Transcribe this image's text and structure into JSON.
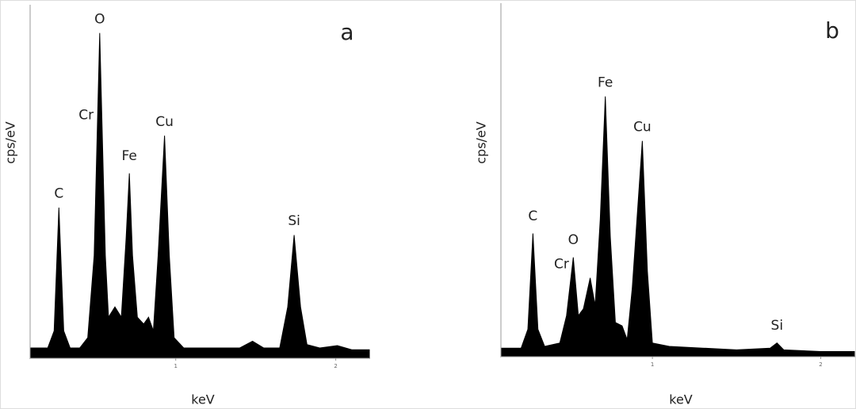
{
  "chart_data": [
    {
      "type": "area",
      "title": "a",
      "xlabel": "keV",
      "ylabel": "cps/eV",
      "color": "#000000",
      "xlim": [
        0.09,
        2.21
      ],
      "xticks": [
        1,
        2
      ],
      "ylim": [
        0,
        100
      ],
      "x": [
        0.09,
        0.2,
        0.24,
        0.27,
        0.3,
        0.34,
        0.4,
        0.45,
        0.49,
        0.525,
        0.56,
        0.58,
        0.62,
        0.66,
        0.69,
        0.71,
        0.73,
        0.76,
        0.8,
        0.83,
        0.86,
        0.89,
        0.93,
        0.96,
        0.99,
        1.05,
        1.2,
        1.4,
        1.48,
        1.55,
        1.65,
        1.7,
        1.74,
        1.78,
        1.82,
        1.9,
        2.01,
        2.1,
        2.21
      ],
      "values": [
        3,
        3,
        8,
        44,
        8,
        3,
        3,
        6,
        30,
        95,
        30,
        12,
        15,
        12,
        35,
        54,
        30,
        12,
        10,
        12,
        8,
        30,
        65,
        30,
        6,
        3,
        3,
        3,
        5,
        3,
        3,
        15,
        36,
        15,
        4,
        3,
        3.7,
        2.5,
        2.5
      ],
      "annotations": [
        {
          "text": "C",
          "x": 0.27,
          "y": 48
        },
        {
          "text": "O",
          "x": 0.525,
          "y": 99
        },
        {
          "text": "Cr",
          "x": 0.44,
          "y": 71
        },
        {
          "text": "Fe",
          "x": 0.71,
          "y": 59
        },
        {
          "text": "Cu",
          "x": 0.93,
          "y": 69
        },
        {
          "text": "Si",
          "x": 1.74,
          "y": 40
        }
      ]
    },
    {
      "type": "area",
      "title": "b",
      "xlabel": "keV",
      "ylabel": "cps/eV",
      "color": "#000000",
      "xlim": [
        0.1,
        2.2
      ],
      "xticks": [
        1,
        2
      ],
      "ylim": [
        0,
        100
      ],
      "x": [
        0.1,
        0.22,
        0.26,
        0.29,
        0.32,
        0.36,
        0.45,
        0.49,
        0.53,
        0.56,
        0.59,
        0.63,
        0.66,
        0.69,
        0.72,
        0.75,
        0.78,
        0.82,
        0.85,
        0.88,
        0.94,
        0.97,
        1.0,
        1.1,
        1.3,
        1.5,
        1.7,
        1.74,
        1.78,
        2.0,
        2.2
      ],
      "values": [
        2.5,
        2.5,
        8,
        36,
        8,
        3,
        4,
        12,
        29,
        12,
        14,
        23,
        15,
        40,
        76,
        35,
        10,
        9,
        5,
        20,
        63,
        25,
        4,
        3,
        2.5,
        2,
        2.5,
        4,
        2,
        1.5,
        1.5
      ],
      "annotations": [
        {
          "text": "C",
          "x": 0.29,
          "y": 41
        },
        {
          "text": "O",
          "x": 0.53,
          "y": 34
        },
        {
          "text": "Cr",
          "x": 0.46,
          "y": 27
        },
        {
          "text": "Fe",
          "x": 0.72,
          "y": 80
        },
        {
          "text": "Cu",
          "x": 0.94,
          "y": 67
        },
        {
          "text": "Si",
          "x": 1.74,
          "y": 9
        }
      ]
    }
  ]
}
